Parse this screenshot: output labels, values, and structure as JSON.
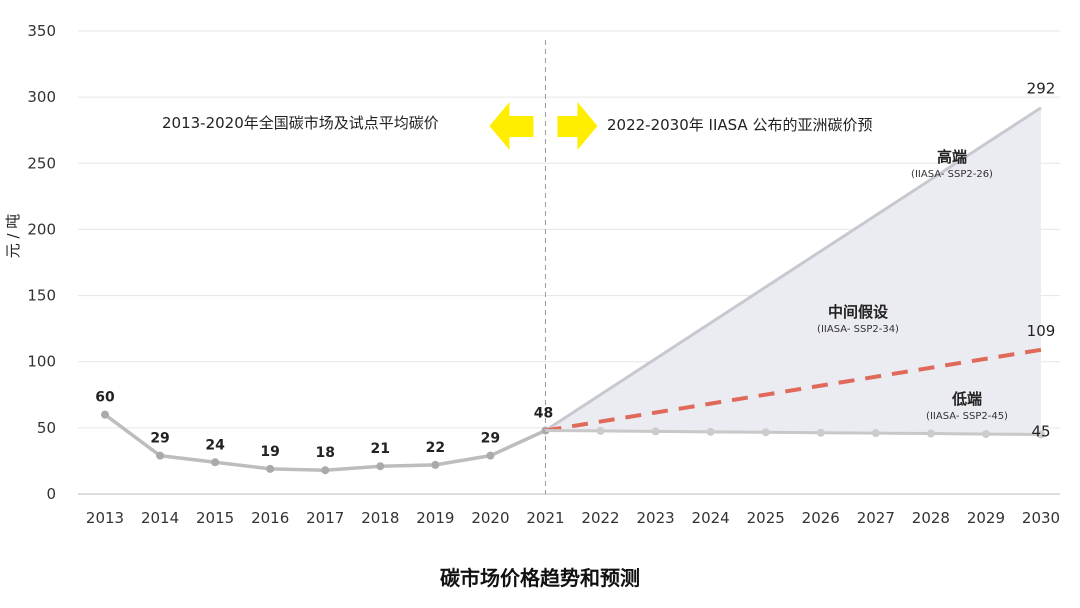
{
  "chart_data": {
    "type": "line",
    "title": "碳市场价格趋势和预测",
    "ylabel": "元 / 吨",
    "xlabel": "",
    "ylim": [
      0,
      350
    ],
    "yticks": [
      0,
      50,
      100,
      150,
      200,
      250,
      300,
      350
    ],
    "grid": true,
    "x": [
      "2013",
      "2014",
      "2015",
      "2016",
      "2017",
      "2018",
      "2019",
      "2020",
      "2021",
      "2022",
      "2023",
      "2024",
      "2025",
      "2026",
      "2027",
      "2028",
      "2029",
      "2030"
    ],
    "historical": {
      "x": [
        "2013",
        "2014",
        "2015",
        "2016",
        "2017",
        "2018",
        "2019",
        "2020",
        "2021"
      ],
      "values": [
        60,
        29,
        24,
        19,
        18,
        21,
        22,
        29,
        48
      ],
      "color": "#bdbdbd"
    },
    "scenarios": [
      {
        "name": "高端",
        "sub": "(IIASA- SSP2-26)",
        "x": [
          "2021",
          "2030"
        ],
        "values": [
          48,
          292
        ],
        "end_label": "292",
        "color": "#c8c8d0"
      },
      {
        "name": "中间假设",
        "sub": "(IIASA- SSP2-34)",
        "x": [
          "2021",
          "2030"
        ],
        "values": [
          48,
          109
        ],
        "end_label": "109",
        "color": "#e06a5a",
        "dashed": true
      },
      {
        "name": "低端",
        "sub": "(IIASA- SSP2-45)",
        "x": [
          "2021",
          "2022",
          "2023",
          "2024",
          "2025",
          "2026",
          "2027",
          "2028",
          "2029",
          "2030"
        ],
        "values": [
          48,
          47.7,
          47.3,
          47,
          46.7,
          46.3,
          46,
          45.7,
          45.3,
          45
        ],
        "end_label": "45",
        "color": "#c8c8c8"
      }
    ],
    "fill_color": "#ebebf2",
    "divider_year": "2021",
    "annotations": {
      "left": "2013-2020年全国碳市场及试点平均碳价",
      "right": "2022-2030年 IIASA 公布的亚洲碳价预",
      "arrow_color": "#ffee00"
    }
  }
}
